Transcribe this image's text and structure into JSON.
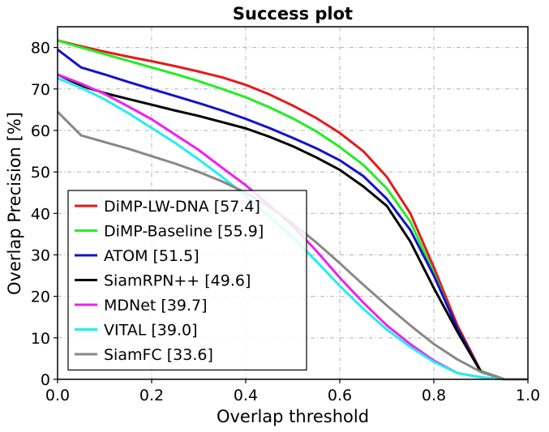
{
  "chart_data": {
    "type": "line",
    "title": "Success plot",
    "xlabel": "Overlap threshold",
    "ylabel": "Overlap Precision [%]",
    "xlim": [
      0,
      1
    ],
    "ylim": [
      0,
      85
    ],
    "xticks": [
      "0.0",
      "0.2",
      "0.4",
      "0.6",
      "0.8",
      "1.0"
    ],
    "yticks": [
      "0",
      "10",
      "20",
      "30",
      "40",
      "50",
      "60",
      "70",
      "80"
    ],
    "grid": true,
    "legend_position": "bottom-left",
    "x": [
      0,
      0.05,
      0.1,
      0.15,
      0.2,
      0.25,
      0.3,
      0.35,
      0.4,
      0.45,
      0.5,
      0.55,
      0.6,
      0.65,
      0.7,
      0.75,
      0.8,
      0.85,
      0.9,
      0.95,
      1.0
    ],
    "series": [
      {
        "name": "DiMP-LW-DNA [57.4]",
        "color": "#e41a1c",
        "values": [
          81.7,
          80.3,
          79.0,
          77.8,
          76.7,
          75.5,
          74.2,
          72.8,
          71.0,
          68.7,
          66.0,
          63.0,
          59.4,
          55.0,
          48.8,
          40.0,
          27.0,
          13.0,
          2.0,
          0.0,
          0.0
        ]
      },
      {
        "name": "DiMP-Baseline [55.9]",
        "color": "#22ee22",
        "values": [
          81.7,
          80.0,
          78.4,
          76.8,
          75.2,
          73.6,
          71.9,
          70.0,
          68.0,
          65.6,
          62.9,
          59.8,
          56.0,
          51.7,
          46.0,
          38.0,
          25.6,
          12.0,
          2.0,
          0.0,
          0.0
        ]
      },
      {
        "name": "ATOM [51.5]",
        "color": "#1212cc",
        "values": [
          79.5,
          75.2,
          73.5,
          71.7,
          70.0,
          68.3,
          66.6,
          64.8,
          62.8,
          60.6,
          58.2,
          55.7,
          52.8,
          49.0,
          43.5,
          36.0,
          25.0,
          12.3,
          1.8,
          0.0,
          0.0
        ]
      },
      {
        "name": "SiamRPN++ [49.6]",
        "color": "#000000",
        "values": [
          73.5,
          70.8,
          69.0,
          67.6,
          66.2,
          64.8,
          63.5,
          62.0,
          60.5,
          58.5,
          56.2,
          53.5,
          50.5,
          46.5,
          41.8,
          33.2,
          22.0,
          11.5,
          1.8,
          0.0,
          0.0
        ]
      },
      {
        "name": "MDNet [39.7]",
        "color": "#ee22ee",
        "values": [
          73.5,
          71.3,
          68.8,
          65.8,
          62.7,
          59.0,
          55.3,
          51.0,
          46.8,
          42.0,
          37.0,
          31.0,
          24.5,
          18.5,
          13.0,
          8.5,
          4.5,
          1.5,
          0.5,
          0.0,
          0.0
        ]
      },
      {
        "name": "VITAL [39.0]",
        "color": "#22eeee",
        "values": [
          72.6,
          70.3,
          67.5,
          64.2,
          60.6,
          57.0,
          53.0,
          48.8,
          44.2,
          39.3,
          34.2,
          28.5,
          22.5,
          17.0,
          12.0,
          7.8,
          4.2,
          1.5,
          0.5,
          0.0,
          0.0
        ]
      },
      {
        "name": "SiamFC [33.6]",
        "color": "#888888",
        "values": [
          64.5,
          58.8,
          57.2,
          55.6,
          53.8,
          52.0,
          50.0,
          47.7,
          45.0,
          41.6,
          37.6,
          33.0,
          28.0,
          22.8,
          17.8,
          13.0,
          8.5,
          4.8,
          1.8,
          0.0,
          0.0
        ]
      }
    ]
  }
}
